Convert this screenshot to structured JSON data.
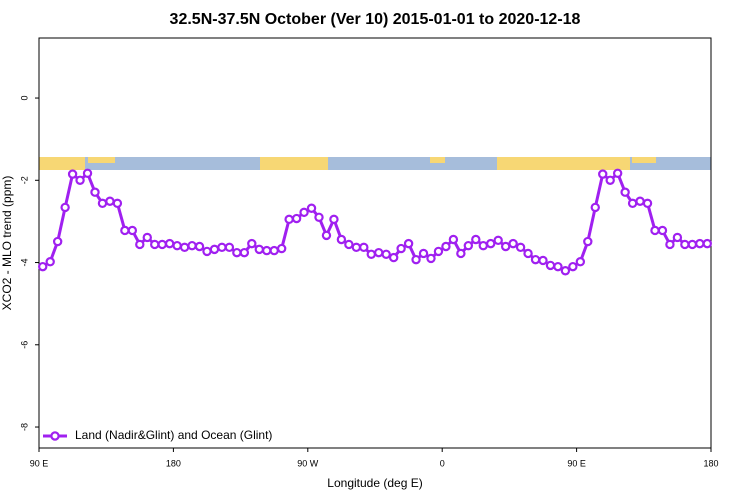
{
  "chart_data": {
    "type": "line",
    "title": "32.5N-37.5N October (Ver 10)   2015-01-01 to 2020-12-18",
    "x_label": "Longitude (deg E)",
    "y_label": "XCO2 - MLO trend (ppm)",
    "xlim": [
      90,
      540
    ],
    "ylim": [
      -8.51,
      1.46
    ],
    "xticks": [
      {
        "value": 90,
        "label": "90 E"
      },
      180,
      {
        "value": 270,
        "label": "90 W"
      },
      {
        "value": 360,
        "label": "0"
      },
      {
        "value": 450,
        "label": "90 E"
      },
      {
        "value": 540,
        "label": "180"
      }
    ],
    "yticks": [
      -8,
      -6,
      -4,
      -2,
      0
    ],
    "legend": "bottom-left",
    "x": [
      92.5,
      97.5,
      102.5,
      107.5,
      112.5,
      117.5,
      122.5,
      127.5,
      132.5,
      137.5,
      142.5,
      147.5,
      152.5,
      157.5,
      162.5,
      167.5,
      172.5,
      177.5,
      182.5,
      187.5,
      192.5,
      197.5,
      202.5,
      207.5,
      212.5,
      217.5,
      222.5,
      227.5,
      232.5,
      237.5,
      242.5,
      247.5,
      252.5,
      257.5,
      262.5,
      267.5,
      272.5,
      277.5,
      282.5,
      287.5,
      292.5,
      297.5,
      302.5,
      307.5,
      312.5,
      317.5,
      322.5,
      327.5,
      332.5,
      337.5,
      342.5,
      347.5,
      352.5,
      357.5,
      362.5,
      367.5,
      372.5,
      377.5,
      382.5,
      387.5,
      392.5,
      397.5,
      402.5,
      407.5,
      412.5,
      417.5,
      422.5,
      427.5,
      432.5,
      437.5,
      442.5,
      447.5,
      452.5,
      457.5,
      462.5,
      467.5,
      472.5,
      477.5,
      482.5,
      487.5,
      492.5,
      497.5,
      502.5,
      507.5,
      512.5,
      517.5,
      522.5,
      527.5,
      532.5,
      537.5
    ],
    "series": [
      {
        "name": "Land (Nadir&Glint) and Ocean (Glint)",
        "color": "#a020f0",
        "values": [
          -4.1,
          -3.98,
          -3.49,
          -2.66,
          -1.85,
          -2.0,
          -1.83,
          -2.29,
          -2.56,
          -2.51,
          -2.56,
          -3.22,
          -3.22,
          -3.56,
          -3.39,
          -3.56,
          -3.56,
          -3.54,
          -3.59,
          -3.63,
          -3.59,
          -3.61,
          -3.73,
          -3.68,
          -3.63,
          -3.63,
          -3.76,
          -3.76,
          -3.54,
          -3.68,
          -3.71,
          -3.71,
          -3.66,
          -2.95,
          -2.93,
          -2.78,
          -2.68,
          -2.9,
          -3.34,
          -2.95,
          -3.44,
          -3.56,
          -3.63,
          -3.63,
          -3.8,
          -3.76,
          -3.8,
          -3.88,
          -3.66,
          -3.54,
          -3.93,
          -3.78,
          -3.9,
          -3.73,
          -3.61,
          -3.44,
          -3.78,
          -3.59,
          -3.44,
          -3.59,
          -3.54,
          -3.46,
          -3.61,
          -3.54,
          -3.63,
          -3.78,
          -3.93,
          -3.95,
          -4.07,
          -4.1,
          -4.2,
          -4.1,
          -3.98,
          -3.49,
          -2.66,
          -1.85,
          -2.0,
          -1.83,
          -2.29,
          -2.56,
          -2.51,
          -2.56,
          -3.22,
          -3.22,
          -3.56,
          -3.39,
          -3.56,
          -3.56,
          -3.54,
          -3.54
        ]
      }
    ]
  }
}
